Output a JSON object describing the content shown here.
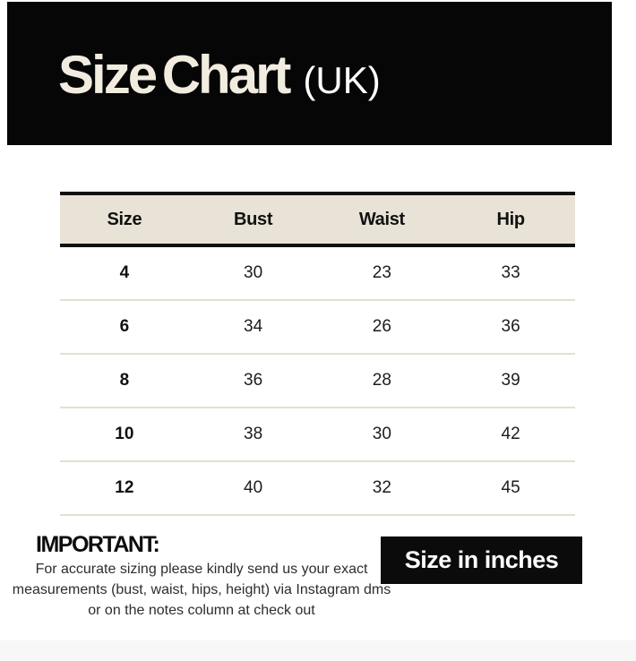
{
  "header": {
    "title": "Size Chart",
    "suffix": "(UK)"
  },
  "chart_data": {
    "type": "table",
    "title": "Size Chart (UK)",
    "unit": "inches",
    "columns": [
      "Size",
      "Bust",
      "Waist",
      "Hip"
    ],
    "rows": [
      [
        "4",
        "30",
        "23",
        "33"
      ],
      [
        "6",
        "34",
        "26",
        "36"
      ],
      [
        "8",
        "36",
        "28",
        "39"
      ],
      [
        "10",
        "38",
        "30",
        "42"
      ],
      [
        "12",
        "40",
        "32",
        "45"
      ]
    ]
  },
  "note": {
    "heading": "IMPORTANT:",
    "body": "For accurate sizing please kindly send us your exact measurements (bust, waist, hips, height) via Instagram dms or on the notes column at check out"
  },
  "badge": {
    "label": "Size in inches"
  },
  "colors": {
    "banner_bg": "#060606",
    "title_cream": "#f1ecdf",
    "table_header_bg": "#e8e3d6",
    "table_border": "#111111",
    "row_divider": "#e4dfd2",
    "badge_bg": "#0b0b0b",
    "edge_strip": "#f7f7f7"
  }
}
